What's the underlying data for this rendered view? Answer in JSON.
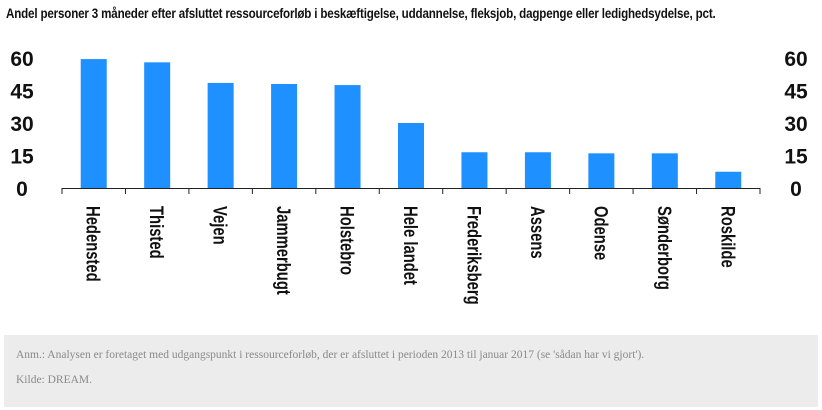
{
  "title": "Andel personer 3 måneder efter afsluttet ressourceforløb i beskæftigelse, uddannelse, fleksjob, dagpenge eller ledighedsydelse, pct.",
  "note": "Anm.: Analysen er foretaget med udgangspunkt i ressourceforløb, der er afsluttet i perioden 2013 til januar 2017 (se 'sådan har vi gjort').",
  "source": "Kilde: DREAM.",
  "colors": {
    "bar": "#1e90ff"
  },
  "chart_data": {
    "type": "bar",
    "title": "Andel personer 3 måneder efter afsluttet ressourceforløb i beskæftigelse, uddannelse, fleksjob, dagpenge eller ledighedsydelse, pct.",
    "categories": [
      "Hedensted",
      "Thisted",
      "Vejen",
      "Jammerbugt",
      "Holstebro",
      "Hele landet",
      "Frederiksberg",
      "Assens",
      "Odense",
      "Sønderborg",
      "Roskilde"
    ],
    "values": [
      59.5,
      58,
      48.5,
      48,
      47.5,
      30,
      16.5,
      16.5,
      16,
      16,
      7.5
    ],
    "yticks": [
      0,
      15,
      30,
      45,
      60
    ],
    "ylim": [
      0,
      60
    ],
    "xlabel": "",
    "ylabel": "",
    "grid": false,
    "y_axis_both_sides": true
  }
}
